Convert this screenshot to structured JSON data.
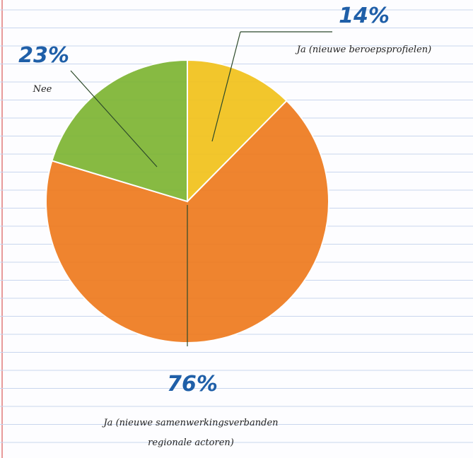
{
  "chart_data": {
    "type": "pie",
    "categories": [
      [
        "Ja (nieuwe beroepsprofielen)"
      ],
      [
        "Ja (nieuwe samenwerkingsverbanden",
        "regionale actoren)"
      ],
      [
        "Nee"
      ]
    ],
    "values": [
      14,
      76,
      23
    ],
    "value_labels": [
      "14%",
      "76%",
      "23%"
    ],
    "colors": [
      "#f2c21b",
      "#ee7a1e",
      "#7db533"
    ]
  }
}
